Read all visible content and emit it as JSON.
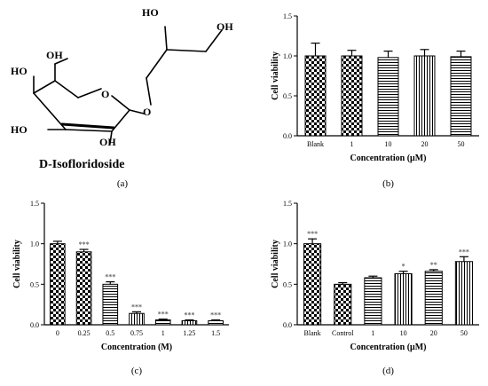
{
  "molecule": {
    "name": "D-Isofloridoside",
    "labels": [
      "HO",
      "OH",
      "OH",
      "HO",
      "O",
      "O",
      "HO",
      "OH"
    ],
    "caption": "(a)"
  },
  "chart_data": [
    {
      "id": "b",
      "type": "bar",
      "caption": "(b)",
      "xlabel": "Concentration (μM)",
      "ylabel": "Cell viability",
      "ylim": [
        0,
        1.5
      ],
      "yticks": [
        "0.0",
        "0.5",
        "1.0",
        "1.5"
      ],
      "categories": [
        "Blank",
        "1",
        "10",
        "20",
        "50"
      ],
      "values": [
        1.0,
        1.0,
        0.98,
        1.0,
        0.99
      ],
      "errors": [
        0.16,
        0.07,
        0.08,
        0.08,
        0.07
      ],
      "significance": [
        "",
        "",
        "",
        "",
        ""
      ],
      "patterns": [
        "check",
        "check",
        "hlines",
        "vlines",
        "hlines"
      ]
    },
    {
      "id": "c",
      "type": "bar",
      "caption": "(c)",
      "xlabel": "Concentration (M)",
      "ylabel": "Cell viability",
      "ylim": [
        0,
        1.5
      ],
      "yticks": [
        "0.0",
        "0.5",
        "1.0",
        "1.5"
      ],
      "categories": [
        "0",
        "0.25",
        "0.5",
        "0.75",
        "1",
        "1.25",
        "1.5"
      ],
      "values": [
        1.0,
        0.9,
        0.5,
        0.14,
        0.06,
        0.05,
        0.05
      ],
      "errors": [
        0.03,
        0.03,
        0.03,
        0.02,
        0.01,
        0.01,
        0.01
      ],
      "significance": [
        "",
        "***",
        "***",
        "***",
        "***",
        "***",
        "***"
      ],
      "patterns": [
        "check",
        "check",
        "hlines",
        "vlines",
        "hlines",
        "vlines",
        "hlines"
      ]
    },
    {
      "id": "d",
      "type": "bar",
      "caption": "(d)",
      "xlabel": "Concentration (μM)",
      "ylabel": "Cell viability",
      "ylim": [
        0,
        1.5
      ],
      "yticks": [
        "0.0",
        "0.5",
        "1.0",
        "1.5"
      ],
      "categories": [
        "Blank",
        "Control",
        "1",
        "10",
        "20",
        "50"
      ],
      "values": [
        1.0,
        0.5,
        0.58,
        0.63,
        0.66,
        0.78
      ],
      "errors": [
        0.06,
        0.02,
        0.02,
        0.03,
        0.02,
        0.06
      ],
      "significance": [
        "***",
        "",
        "",
        "*",
        "**",
        "***"
      ],
      "patterns": [
        "check",
        "check",
        "hlines",
        "vlines",
        "hlines",
        "vlines"
      ]
    }
  ]
}
